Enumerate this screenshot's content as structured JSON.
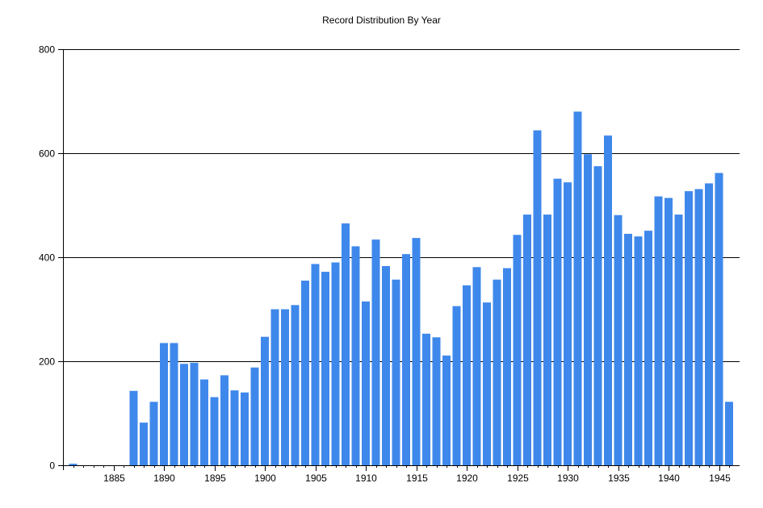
{
  "chart_data": {
    "type": "bar",
    "title": "Record Distribution By Year",
    "xlabel": "",
    "ylabel": "",
    "ylim": [
      0,
      800
    ],
    "yticks": [
      0,
      200,
      400,
      600,
      800
    ],
    "xticks": [
      1885,
      1890,
      1895,
      1900,
      1905,
      1910,
      1915,
      1920,
      1925,
      1930,
      1935,
      1940,
      1945
    ],
    "grid": "horizontal",
    "bar_color": "#3f88eb",
    "x": [
      1881,
      1882,
      1883,
      1884,
      1885,
      1886,
      1887,
      1888,
      1889,
      1890,
      1891,
      1892,
      1893,
      1894,
      1895,
      1896,
      1897,
      1898,
      1899,
      1900,
      1901,
      1902,
      1903,
      1904,
      1905,
      1906,
      1907,
      1908,
      1909,
      1910,
      1911,
      1912,
      1913,
      1914,
      1915,
      1916,
      1917,
      1918,
      1919,
      1920,
      1921,
      1922,
      1923,
      1924,
      1925,
      1926,
      1927,
      1928,
      1929,
      1930,
      1931,
      1932,
      1933,
      1934,
      1935,
      1936,
      1937,
      1938,
      1939,
      1940,
      1941,
      1942,
      1943,
      1944,
      1945,
      1946
    ],
    "values": [
      3,
      0,
      0,
      0,
      0,
      0,
      143,
      82,
      122,
      235,
      235,
      195,
      197,
      165,
      131,
      173,
      144,
      140,
      188,
      247,
      300,
      300,
      308,
      355,
      387,
      372,
      390,
      465,
      421,
      315,
      434,
      383,
      357,
      406,
      437,
      253,
      246,
      211,
      306,
      346,
      381,
      313,
      357,
      379,
      443,
      482,
      644,
      482,
      551,
      544,
      680,
      598,
      575,
      634,
      481,
      445,
      440,
      451,
      517,
      514,
      482,
      527,
      531,
      542,
      562,
      122
    ]
  }
}
